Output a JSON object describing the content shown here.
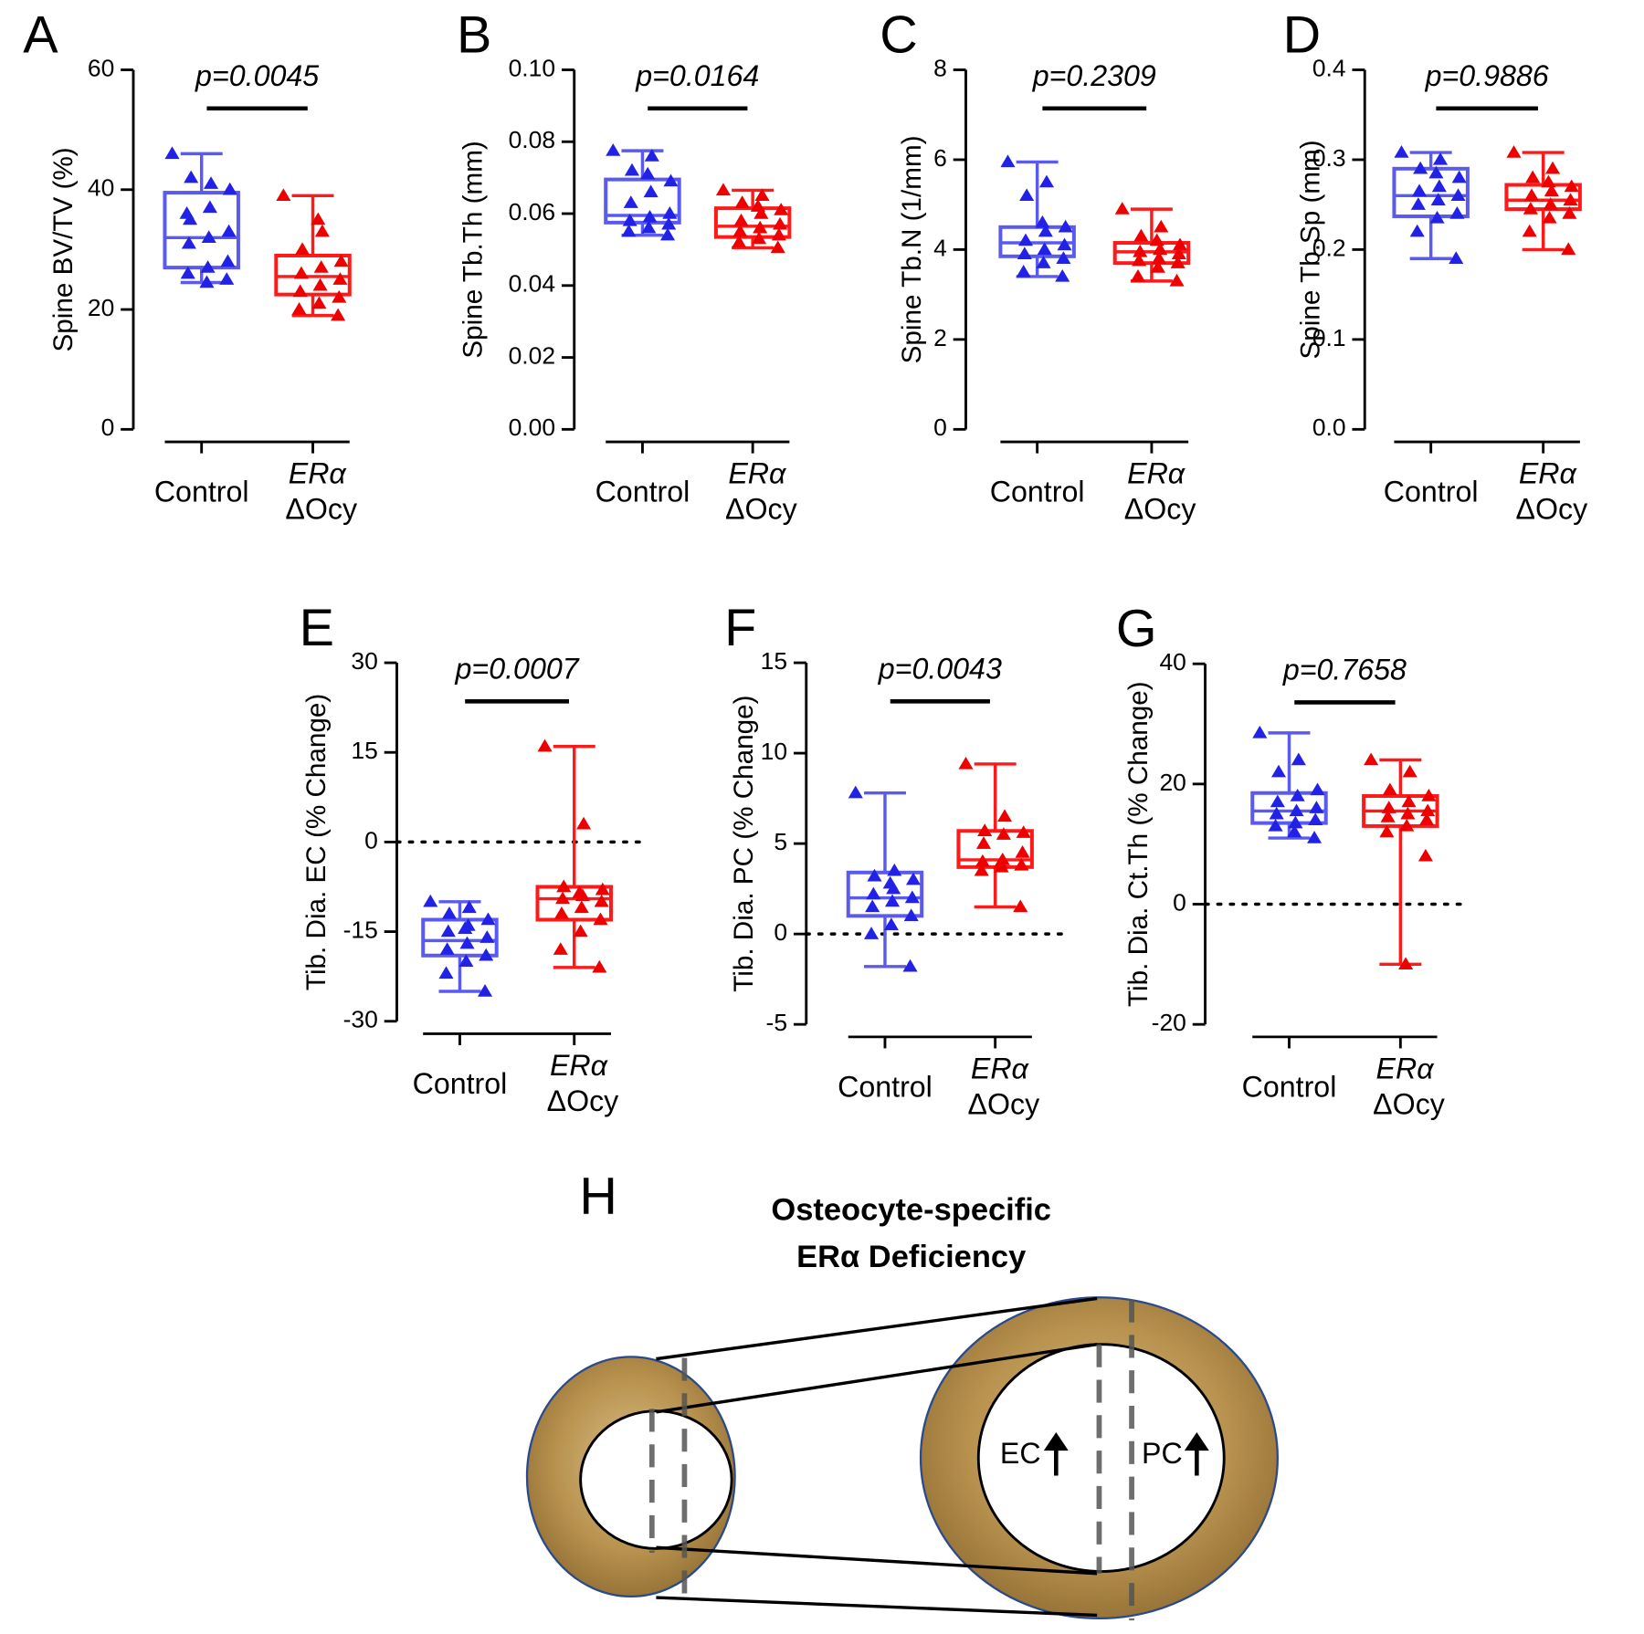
{
  "chart_data": [
    {
      "type": "box",
      "panel": "A",
      "ylabel": "Spine BV/TV (%)",
      "annotation": "p=0.0045",
      "categories": [
        "Control",
        "ERα ΔOcy"
      ],
      "ylim": [
        0,
        60
      ],
      "yticks": [
        0,
        20,
        40,
        60
      ],
      "series": [
        {
          "box_color": "#5a5af0",
          "point_color": "#2222e6",
          "box": {
            "min": 24.5,
            "q1": 27,
            "median": 32,
            "q3": 39.5,
            "max": 46
          },
          "values": [
            46,
            41,
            42,
            40,
            37,
            35,
            33,
            32,
            31,
            28,
            27,
            26,
            25,
            24.5,
            36
          ]
        },
        {
          "box_color": "#ff1a1a",
          "point_color": "#ee0000",
          "box": {
            "min": 19,
            "q1": 22.5,
            "median": 25.5,
            "q3": 29,
            "max": 39
          },
          "values": [
            39,
            33,
            30,
            28,
            27,
            26,
            25,
            24,
            23,
            22,
            21,
            20,
            19,
            35
          ]
        }
      ]
    },
    {
      "type": "box",
      "panel": "B",
      "ylabel": "Spine Tb.Th (mm)",
      "annotation": "p=0.0164",
      "categories": [
        "Control",
        "ERα ΔOcy"
      ],
      "ylim": [
        0,
        0.1
      ],
      "yticks": [
        {
          "value": 0,
          "label": "0.00"
        },
        0.02,
        0.04,
        0.06,
        0.08,
        {
          "value": 0.1,
          "label": "0.10"
        }
      ],
      "series": [
        {
          "box_color": "#5a5af0",
          "point_color": "#2222e6",
          "box": {
            "min": 0.054,
            "q1": 0.0575,
            "median": 0.0595,
            "q3": 0.0695,
            "max": 0.0775
          },
          "values": [
            0.0775,
            0.076,
            0.072,
            0.069,
            0.066,
            0.063,
            0.06,
            0.059,
            0.058,
            0.057,
            0.056,
            0.055,
            0.054,
            0.071
          ]
        },
        {
          "box_color": "#ff1a1a",
          "point_color": "#ee0000",
          "box": {
            "min": 0.0505,
            "q1": 0.0535,
            "median": 0.0565,
            "q3": 0.0615,
            "max": 0.0665
          },
          "values": [
            0.0665,
            0.065,
            0.063,
            0.061,
            0.06,
            0.058,
            0.057,
            0.056,
            0.055,
            0.054,
            0.053,
            0.052,
            0.0505,
            0.062
          ]
        }
      ]
    },
    {
      "type": "box",
      "panel": "C",
      "ylabel": "Spine Tb.N (1/mm)",
      "annotation": "p=0.2309",
      "categories": [
        "Control",
        "ERα ΔOcy"
      ],
      "ylim": [
        0,
        8
      ],
      "yticks": [
        0,
        2,
        4,
        6,
        8
      ],
      "series": [
        {
          "box_color": "#5a5af0",
          "point_color": "#2222e6",
          "box": {
            "min": 3.4,
            "q1": 3.85,
            "median": 4.15,
            "q3": 4.5,
            "max": 5.95
          },
          "values": [
            5.95,
            5.5,
            5.2,
            4.5,
            4.4,
            4.2,
            4.1,
            4.0,
            3.9,
            3.8,
            3.7,
            3.5,
            3.4,
            4.6
          ]
        },
        {
          "box_color": "#ff1a1a",
          "point_color": "#ee0000",
          "box": {
            "min": 3.3,
            "q1": 3.7,
            "median": 3.95,
            "q3": 4.15,
            "max": 4.9
          },
          "values": [
            4.9,
            4.5,
            4.3,
            4.1,
            4.0,
            3.95,
            3.9,
            3.8,
            3.75,
            3.7,
            3.6,
            3.4,
            3.3,
            4.2
          ]
        }
      ]
    },
    {
      "type": "box",
      "panel": "D",
      "ylabel": "Spine Tb.Sp (mm)",
      "annotation": "p=0.9886",
      "categories": [
        "Control",
        "ERα ΔOcy"
      ],
      "ylim": [
        0,
        0.4
      ],
      "yticks": [
        {
          "value": 0,
          "label": "0.0"
        },
        0.1,
        0.2,
        0.3,
        0.4
      ],
      "series": [
        {
          "box_color": "#5a5af0",
          "point_color": "#2222e6",
          "box": {
            "min": 0.19,
            "q1": 0.237,
            "median": 0.26,
            "q3": 0.29,
            "max": 0.308
          },
          "values": [
            0.308,
            0.3,
            0.29,
            0.28,
            0.27,
            0.265,
            0.26,
            0.255,
            0.25,
            0.24,
            0.235,
            0.22,
            0.19,
            0.285
          ]
        },
        {
          "box_color": "#ff1a1a",
          "point_color": "#ee0000",
          "box": {
            "min": 0.2,
            "q1": 0.245,
            "median": 0.255,
            "q3": 0.272,
            "max": 0.308
          },
          "values": [
            0.308,
            0.29,
            0.28,
            0.27,
            0.265,
            0.26,
            0.255,
            0.25,
            0.245,
            0.24,
            0.235,
            0.22,
            0.2,
            0.275
          ]
        }
      ]
    },
    {
      "type": "box",
      "panel": "E",
      "ylabel": "Tib. Dia. EC (% Change)",
      "annotation": "p=0.0007",
      "categories": [
        "Control",
        "ERα ΔOcy"
      ],
      "ylim": [
        -30,
        30
      ],
      "yticks": [
        -30,
        -15,
        0,
        15,
        30
      ],
      "reference_line": 0,
      "series": [
        {
          "box_color": "#5a5af0",
          "point_color": "#2222e6",
          "box": {
            "min": -25,
            "q1": -19,
            "median": -16.5,
            "q3": -13,
            "max": -10
          },
          "values": [
            -10,
            -11,
            -12,
            -13,
            -14,
            -15,
            -16,
            -17,
            -18,
            -19,
            -20,
            -22,
            -25,
            -14.5
          ]
        },
        {
          "box_color": "#ff1a1a",
          "point_color": "#ee0000",
          "box": {
            "min": -21,
            "q1": -13,
            "median": -9.5,
            "q3": -7.5,
            "max": 16
          },
          "values": [
            16,
            3,
            -7.5,
            -8,
            -9,
            -9.5,
            -10,
            -11,
            -12,
            -13,
            -15,
            -18,
            -21,
            -8.5
          ]
        }
      ]
    },
    {
      "type": "box",
      "panel": "F",
      "ylabel": "Tib. Dia. PC (% Change)",
      "annotation": "p=0.0043",
      "categories": [
        "Control",
        "ERα ΔOcy"
      ],
      "ylim": [
        -5,
        15
      ],
      "yticks": [
        -5,
        0,
        5,
        10,
        15
      ],
      "reference_line": 0,
      "series": [
        {
          "box_color": "#5a5af0",
          "point_color": "#2222e6",
          "box": {
            "min": -1.8,
            "q1": 1,
            "median": 2,
            "q3": 3.4,
            "max": 7.8
          },
          "values": [
            7.8,
            3.5,
            3.2,
            3,
            2.5,
            2.2,
            2,
            1.8,
            1.5,
            1,
            0.5,
            0,
            -1.8,
            2.8
          ]
        },
        {
          "box_color": "#ff1a1a",
          "point_color": "#ee0000",
          "box": {
            "min": 1.5,
            "q1": 3.7,
            "median": 4.1,
            "q3": 5.7,
            "max": 9.4
          },
          "values": [
            9.4,
            6.5,
            5.7,
            5.6,
            5.5,
            5,
            4.5,
            4.1,
            4,
            3.8,
            3.7,
            3.5,
            1.5,
            3.9
          ]
        }
      ]
    },
    {
      "type": "box",
      "panel": "G",
      "ylabel": "Tib. Dia. Ct.Th (% Change)",
      "annotation": "p=0.7658",
      "categories": [
        "Control",
        "ERα ΔOcy"
      ],
      "ylim": [
        -20,
        40
      ],
      "yticks": [
        -20,
        0,
        20,
        40
      ],
      "reference_line": 0,
      "series": [
        {
          "box_color": "#5a5af0",
          "point_color": "#2222e6",
          "box": {
            "min": 11,
            "q1": 13.5,
            "median": 15.5,
            "q3": 18.5,
            "max": 28.5
          },
          "values": [
            28.5,
            24,
            22,
            19,
            18,
            17,
            16,
            15.5,
            15,
            14,
            13.5,
            13,
            11,
            12
          ]
        },
        {
          "box_color": "#ff1a1a",
          "point_color": "#ee0000",
          "box": {
            "min": -10,
            "q1": 13,
            "median": 15.5,
            "q3": 18,
            "max": 24
          },
          "values": [
            24,
            22,
            19,
            18,
            17,
            16,
            15.5,
            15,
            14.5,
            14,
            13,
            12,
            8,
            -10
          ]
        }
      ]
    }
  ],
  "diagram": {
    "panel": "H",
    "title_lines": [
      "Osteocyte-specific",
      "ERα Deficiency"
    ],
    "labels": [
      "EC",
      "PC"
    ]
  }
}
